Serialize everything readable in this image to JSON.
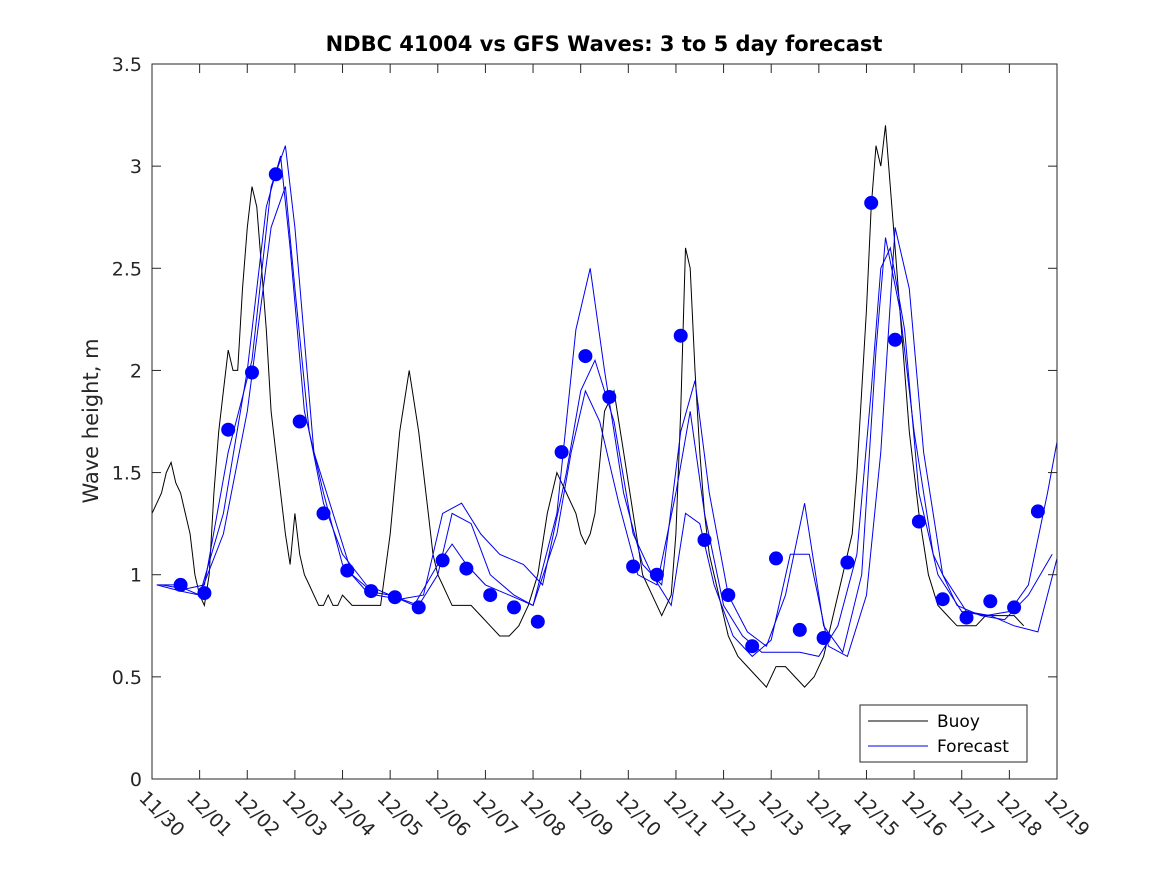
{
  "chart_data": {
    "type": "line",
    "title": "NDBC 41004 vs GFS Waves: 3 to 5 day forecast",
    "xlabel": "",
    "ylabel": "Wave height, m",
    "xlim": [
      0,
      19
    ],
    "ylim": [
      0,
      3.5
    ],
    "x_tick_labels": [
      "11/30",
      "12/01",
      "12/02",
      "12/03",
      "12/04",
      "12/05",
      "12/06",
      "12/07",
      "12/08",
      "12/09",
      "12/10",
      "12/11",
      "12/12",
      "12/13",
      "12/14",
      "12/15",
      "12/16",
      "12/17",
      "12/18",
      "12/19"
    ],
    "y_ticks": [
      0,
      0.5,
      1,
      1.5,
      2,
      2.5,
      3,
      3.5
    ],
    "y_tick_labels": [
      "0",
      "0.5",
      "1",
      "1.5",
      "2",
      "2.5",
      "3",
      "3.5"
    ],
    "colors": {
      "buoy": "#000000",
      "forecast": "#0000ee",
      "marker": "#0000ff",
      "axis": "#262626"
    },
    "legend": {
      "position": "bottom-right",
      "entries": [
        "Buoy",
        "Forecast"
      ]
    },
    "series": [
      {
        "name": "Buoy",
        "x": [
          0,
          0.1,
          0.2,
          0.3,
          0.4,
          0.5,
          0.6,
          0.7,
          0.8,
          0.9,
          1.0,
          1.1,
          1.2,
          1.3,
          1.4,
          1.5,
          1.6,
          1.7,
          1.8,
          1.9,
          2.0,
          2.1,
          2.2,
          2.3,
          2.4,
          2.5,
          2.6,
          2.7,
          2.8,
          2.9,
          3.0,
          3.1,
          3.2,
          3.3,
          3.4,
          3.5,
          3.6,
          3.7,
          3.8,
          3.9,
          4.0,
          4.2,
          4.4,
          4.6,
          4.8,
          5.0,
          5.2,
          5.4,
          5.6,
          5.8,
          5.9,
          6.0,
          6.1,
          6.2,
          6.3,
          6.5,
          6.7,
          6.9,
          7.1,
          7.3,
          7.5,
          7.7,
          7.9,
          8.1,
          8.3,
          8.5,
          8.7,
          8.9,
          9.0,
          9.1,
          9.2,
          9.3,
          9.5,
          9.7,
          9.9,
          10.1,
          10.3,
          10.5,
          10.7,
          10.9,
          11.0,
          11.1,
          11.2,
          11.3,
          11.4,
          11.5,
          11.6,
          11.7,
          11.9,
          12.1,
          12.3,
          12.5,
          12.7,
          12.9,
          13.1,
          13.3,
          13.5,
          13.7,
          13.9,
          14.1,
          14.3,
          14.5,
          14.7,
          14.8,
          14.9,
          15.0,
          15.1,
          15.2,
          15.3,
          15.4,
          15.5,
          15.6,
          15.7,
          15.8,
          15.9,
          16.1,
          16.3,
          16.5,
          16.7,
          16.9,
          17.1,
          17.3,
          17.5,
          17.7,
          17.9,
          18.1,
          18.3
        ],
        "values": [
          1.3,
          1.35,
          1.4,
          1.5,
          1.55,
          1.45,
          1.4,
          1.3,
          1.2,
          1.0,
          0.9,
          0.85,
          1.0,
          1.4,
          1.7,
          1.9,
          2.1,
          2.0,
          2.0,
          2.4,
          2.7,
          2.9,
          2.8,
          2.5,
          2.2,
          1.8,
          1.6,
          1.4,
          1.2,
          1.05,
          1.3,
          1.1,
          1.0,
          0.95,
          0.9,
          0.85,
          0.85,
          0.9,
          0.85,
          0.85,
          0.9,
          0.85,
          0.85,
          0.85,
          0.85,
          1.2,
          1.7,
          2.0,
          1.7,
          1.3,
          1.1,
          1.0,
          0.95,
          0.9,
          0.85,
          0.85,
          0.85,
          0.8,
          0.75,
          0.7,
          0.7,
          0.75,
          0.85,
          1.0,
          1.3,
          1.5,
          1.4,
          1.3,
          1.2,
          1.15,
          1.2,
          1.3,
          1.8,
          1.9,
          1.6,
          1.3,
          1.0,
          0.9,
          0.8,
          0.9,
          1.2,
          1.8,
          2.6,
          2.5,
          2.0,
          1.6,
          1.3,
          1.1,
          0.9,
          0.7,
          0.6,
          0.55,
          0.5,
          0.45,
          0.55,
          0.55,
          0.5,
          0.45,
          0.5,
          0.6,
          0.8,
          1.0,
          1.2,
          1.5,
          1.9,
          2.3,
          2.8,
          3.1,
          3.0,
          3.2,
          2.9,
          2.6,
          2.3,
          2.0,
          1.7,
          1.3,
          1.0,
          0.85,
          0.8,
          0.75,
          0.75,
          0.75,
          0.8,
          0.8,
          0.8,
          0.8,
          0.75
        ]
      },
      {
        "name": "Forecast",
        "x": [
          0.1,
          0.5,
          1.0,
          1.5,
          2.0,
          2.5,
          2.8,
          3.0,
          3.3,
          3.6,
          4.0,
          4.5,
          5.0,
          5.5,
          6.0,
          6.3,
          6.6,
          7.0,
          7.5,
          8.0,
          8.5,
          8.8,
          9.1,
          9.4,
          9.8,
          10.2,
          10.6,
          11.0,
          11.3,
          11.6,
          12.0,
          12.4,
          12.8,
          13.2,
          13.6,
          14.0,
          14.4,
          14.8,
          15.1,
          15.3,
          15.5,
          15.8,
          16.1,
          16.5,
          17.0,
          17.5,
          18.0,
          18.4,
          18.8,
          19.0
        ],
        "values": [
          0.95,
          0.95,
          0.9,
          1.2,
          1.8,
          2.7,
          2.9,
          2.4,
          1.7,
          1.35,
          1.1,
          0.95,
          0.9,
          0.85,
          1.05,
          1.15,
          1.05,
          0.95,
          0.9,
          0.85,
          1.2,
          1.6,
          1.9,
          1.75,
          1.35,
          1.0,
          0.95,
          1.4,
          1.8,
          1.3,
          0.85,
          0.7,
          0.62,
          0.62,
          0.62,
          0.6,
          0.75,
          1.1,
          1.9,
          2.5,
          2.6,
          2.2,
          1.4,
          1.0,
          0.82,
          0.8,
          0.82,
          0.95,
          1.4,
          1.65
        ]
      },
      {
        "name": "Forecast",
        "x": [
          0.1,
          0.6,
          1.0,
          1.5,
          2.0,
          2.4,
          2.7,
          2.9,
          3.2,
          3.6,
          4.0,
          4.5,
          5.0,
          5.6,
          6.0,
          6.3,
          6.7,
          7.1,
          7.6,
          8.0,
          8.5,
          8.9,
          9.2,
          9.5,
          9.9,
          10.3,
          10.7,
          11.1,
          11.4,
          11.7,
          12.1,
          12.5,
          12.9,
          13.3,
          13.7,
          14.1,
          14.5,
          14.9,
          15.2,
          15.4,
          15.7,
          16.0,
          16.4,
          16.9,
          17.4,
          17.9,
          18.4,
          18.9
        ],
        "values": [
          0.95,
          0.92,
          0.9,
          1.3,
          2.0,
          2.8,
          3.05,
          2.6,
          1.8,
          1.4,
          1.05,
          0.92,
          0.9,
          0.85,
          1.0,
          1.3,
          1.25,
          1.0,
          0.9,
          0.85,
          1.3,
          2.2,
          2.5,
          2.0,
          1.4,
          1.05,
          0.95,
          1.7,
          1.95,
          1.4,
          0.9,
          0.72,
          0.65,
          0.9,
          1.35,
          0.75,
          0.62,
          1.0,
          2.1,
          2.65,
          2.3,
          1.7,
          1.1,
          0.85,
          0.8,
          0.78,
          0.9,
          1.1
        ]
      },
      {
        "name": "Forecast",
        "x": [
          0.2,
          0.7,
          1.1,
          1.6,
          2.1,
          2.5,
          2.8,
          3.0,
          3.4,
          3.8,
          4.2,
          4.7,
          5.2,
          5.7,
          6.1,
          6.5,
          6.9,
          7.3,
          7.8,
          8.2,
          8.7,
          9.0,
          9.3,
          9.7,
          10.1,
          10.5,
          10.9,
          11.2,
          11.5,
          11.8,
          12.2,
          12.6,
          13.0,
          13.4,
          13.8,
          14.2,
          14.6,
          15.0,
          15.3,
          15.6,
          15.9,
          16.2,
          16.6,
          17.1,
          17.6,
          18.1,
          18.6,
          19.0
        ],
        "values": [
          0.95,
          0.93,
          0.95,
          1.6,
          2.05,
          2.9,
          3.1,
          2.7,
          1.6,
          1.3,
          1.0,
          0.9,
          0.88,
          0.9,
          1.3,
          1.35,
          1.2,
          1.1,
          1.05,
          0.95,
          1.5,
          1.9,
          2.05,
          1.75,
          1.2,
          1.0,
          0.85,
          1.3,
          1.25,
          0.95,
          0.7,
          0.6,
          0.68,
          1.1,
          1.1,
          0.65,
          0.6,
          0.9,
          1.6,
          2.7,
          2.4,
          1.6,
          1.0,
          0.82,
          0.8,
          0.75,
          0.72,
          1.08
        ]
      }
    ],
    "markers": {
      "name": "Forecast",
      "x": [
        0.6,
        1.1,
        1.6,
        2.1,
        2.6,
        3.1,
        3.6,
        4.1,
        4.6,
        5.1,
        5.6,
        6.1,
        6.6,
        7.1,
        7.6,
        8.1,
        8.6,
        9.1,
        9.6,
        10.1,
        10.6,
        11.1,
        11.6,
        12.1,
        12.6,
        13.1,
        13.6,
        14.1,
        14.6,
        15.1,
        15.6,
        16.1,
        16.6,
        17.1,
        17.6,
        18.1,
        18.6
      ],
      "values": [
        0.95,
        0.91,
        1.71,
        1.99,
        2.96,
        1.75,
        1.3,
        1.02,
        0.92,
        0.89,
        0.84,
        1.07,
        1.03,
        0.9,
        0.84,
        0.77,
        1.6,
        2.07,
        1.87,
        1.04,
        1.0,
        2.17,
        1.17,
        0.9,
        0.65,
        1.08,
        0.73,
        0.69,
        1.06,
        2.82,
        2.15,
        1.26,
        0.88,
        0.79,
        0.87,
        0.84,
        1.31
      ]
    }
  }
}
